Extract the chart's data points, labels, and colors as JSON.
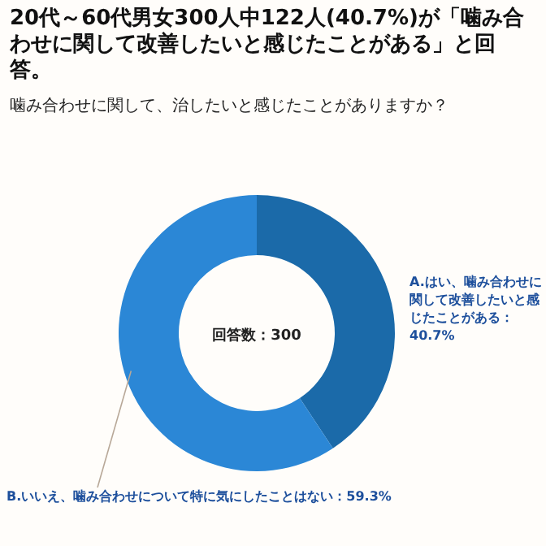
{
  "chart_data": {
    "type": "donut",
    "title": "20代～60代男女300人中122人(40.7%)が「噛み合わせに関して改善したいと感じたことがある」と回答。",
    "subtitle": "噛み合わせに関して、治したいと感じたことがありますか？",
    "categories": [
      "A.はい、噛み合わせに関して改善したいと感じたことがある",
      "B.いいえ、噛み合わせについて特に気にしたことはない"
    ],
    "values": [
      40.7,
      59.3
    ],
    "colors": [
      "#1b6aa9",
      "#2b87d6"
    ],
    "value_labels": [
      "：40.7%",
      "：59.3%"
    ],
    "annotations": [
      "回答数：300"
    ]
  }
}
